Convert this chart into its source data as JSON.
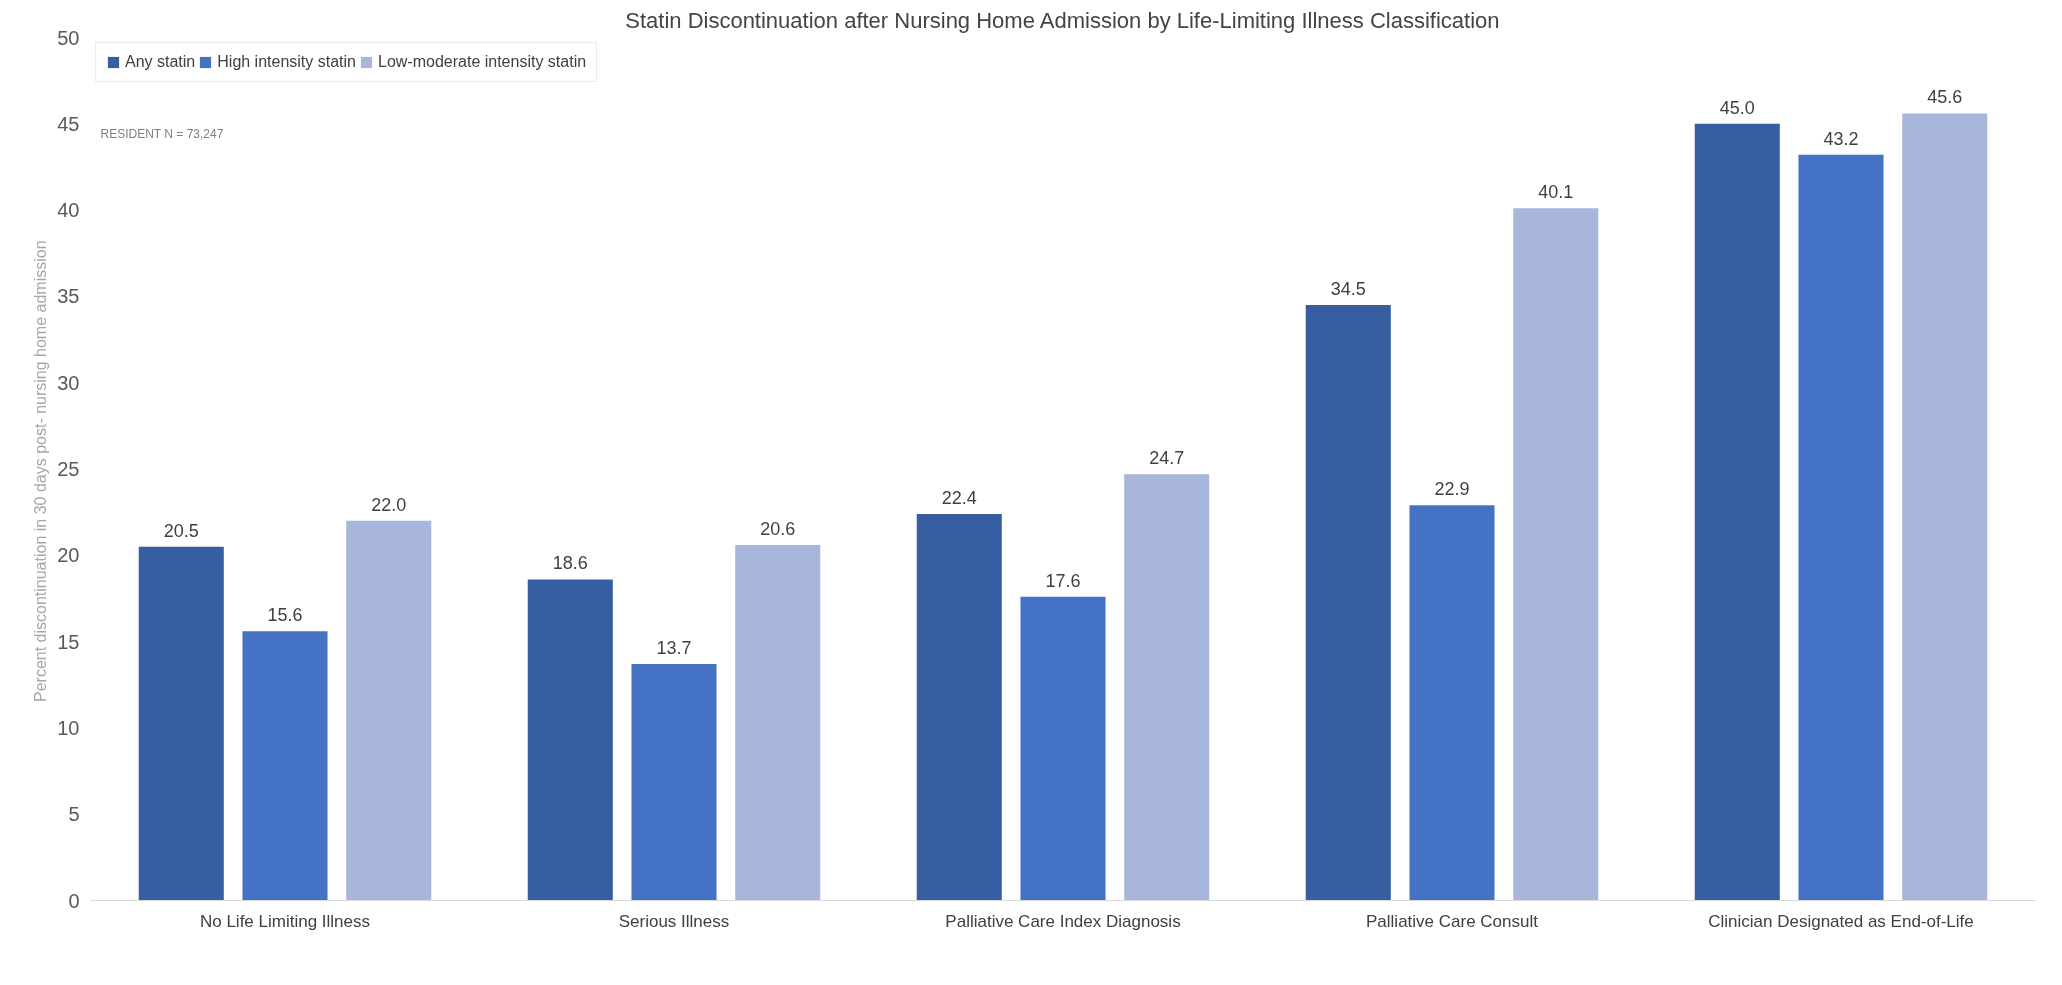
{
  "chart_data": {
    "type": "bar",
    "title": "Statin Discontinuation after Nursing Home Admission by Life-Limiting Illness Classification",
    "ylabel": "Percent  discontinuation in 30 days post- nursing home admission",
    "categories": [
      "No Life Limiting Illness",
      "Serious Illness",
      "Palliative Care Index Diagnosis",
      "Palliative Care Consult",
      "Clinician Designated as End-of-Life"
    ],
    "series": [
      {
        "name": "Any statin",
        "color": "#365ea1",
        "values": [
          20.5,
          18.6,
          22.4,
          34.5,
          45.0
        ],
        "value_labels": [
          "20.5",
          "18.6",
          "22.4",
          "34.5",
          "45.0"
        ]
      },
      {
        "name": "High intensity statin",
        "color": "#4472c4",
        "values": [
          15.6,
          13.7,
          17.6,
          22.9,
          43.2
        ],
        "value_labels": [
          "15.6",
          "13.7",
          "17.6",
          "22.9",
          "43.2"
        ]
      },
      {
        "name": "Low-moderate intensity statin",
        "color": "#a9b6dc",
        "values": [
          22.0,
          20.6,
          24.7,
          40.1,
          45.6
        ],
        "value_labels": [
          "22.0",
          "20.6",
          "24.7",
          "40.1",
          "45.6"
        ]
      }
    ],
    "ylim": [
      0,
      50
    ],
    "yticks": [
      0,
      5,
      10,
      15,
      20,
      25,
      30,
      35,
      40,
      45,
      50
    ],
    "grid": false,
    "legend": "top left",
    "annotations": [
      "RESIDENT N = 73,247"
    ]
  }
}
